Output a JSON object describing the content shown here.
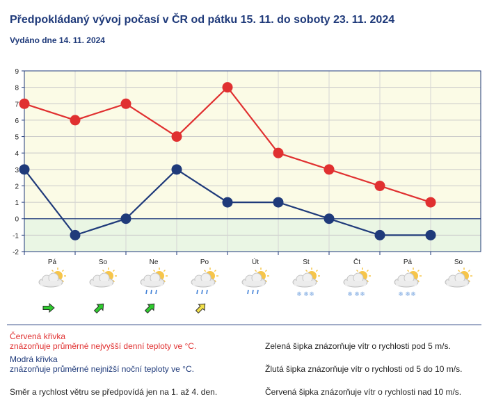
{
  "header": {
    "title": "Předpokládaný vývoj počasí v ČR od pátku 15. 11. do soboty 23. 11. 2024",
    "issued": "Vydáno dne 14. 11. 2024"
  },
  "chart_data": {
    "type": "line",
    "x": [
      "Pá",
      "So",
      "Ne",
      "Po",
      "Út",
      "St",
      "Čt",
      "Pá",
      "So"
    ],
    "ylim": [
      -2,
      9
    ],
    "yticks": [
      -2,
      -1,
      0,
      1,
      2,
      3,
      4,
      5,
      6,
      7,
      8,
      9
    ],
    "grid": true,
    "series": [
      {
        "key": "max",
        "color": "#e03030",
        "values": [
          7,
          6,
          7,
          5,
          8,
          4,
          3,
          2,
          1
        ]
      },
      {
        "key": "min",
        "color": "#1f3a7a",
        "values": [
          3,
          -1,
          0,
          3,
          1,
          1,
          0,
          -1,
          -1
        ]
      }
    ],
    "weather_icons": [
      "sun-cloud",
      "sun-cloud",
      "sun-cloud-rain",
      "sun-cloud-rain",
      "sun-cloud-rain",
      "sun-cloud-snow",
      "sun-cloud-snow",
      "sun-cloud-snow",
      "sun-cloud"
    ],
    "wind_arrows": [
      {
        "direction": "east",
        "color": "#2ecc2e"
      },
      {
        "direction": "northeast",
        "color": "#2ecc2e"
      },
      {
        "direction": "northeast",
        "color": "#2ecc2e"
      },
      {
        "direction": "northeast",
        "color": "#f2e04a"
      }
    ],
    "colors": {
      "plot_bg": "#fbfbe6",
      "below_zero_bg": "#eaf6e4",
      "axis": "#1f3a7a"
    }
  },
  "legend": {
    "red_title": "Červená křivka",
    "red_desc": "znázorňuje průměrné nejvyšší denní teploty ve °C.",
    "blue_title": "Modrá křivka",
    "blue_desc": "znázorňuje průměrné nejnižší noční teploty ve °C.",
    "wind_note": "Směr a rychlost větru se předpovídá jen na 1. až 4. den.",
    "green_arrow": "Zelená šipka znázorňuje vítr o rychlosti pod 5 m/s.",
    "yellow_arrow": "Žlutá šipka znázorňuje vítr o rychlosti od 5 do 10 m/s.",
    "red_arrow": "Červená šipka znázorňuje vítr o rychlosti nad 10 m/s."
  }
}
